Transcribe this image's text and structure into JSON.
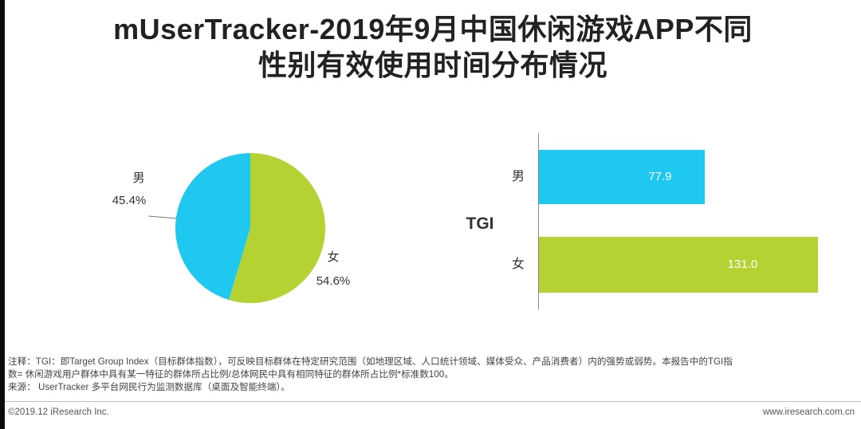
{
  "title": {
    "line1": "mUserTracker-2019年9月中国休闲游戏APP不同",
    "line2": "性别有效使用时间分布情况"
  },
  "chart_data": [
    {
      "type": "pie",
      "slices": [
        {
          "label": "男",
          "value": 45.4,
          "value_label": "45.4%",
          "color": "#1fc8ef"
        },
        {
          "label": "女",
          "value": 54.6,
          "value_label": "54.6%",
          "color": "#b4d333"
        }
      ]
    },
    {
      "type": "bar",
      "orientation": "horizontal",
      "ylabel": "TGI",
      "categories": [
        "男",
        "女"
      ],
      "values": [
        77.9,
        131.0
      ],
      "value_labels": [
        "77.9",
        "131.0"
      ],
      "colors": [
        "#1fc8ef",
        "#b4d333"
      ],
      "xlim": [
        0,
        131.0
      ]
    }
  ],
  "notes": {
    "line1": "注释：TGI：即Target Group Index（目标群体指数），可反映目标群体在特定研究范围（如地理区域、人口统计领域、媒体受众、产品消费者）内的强势或弱势。本报告中的TGI指",
    "line2": "数= 休闲游戏用户群体中具有某一特征的群体所占比例/总体网民中具有相同特征的群体所占比例*标准数100。",
    "line3": "来源： UserTracker 多平台网民行为监测数据库（桌面及智能终端）。"
  },
  "footer": {
    "copyright": "©2019.12 iResearch Inc.",
    "website": "www.iresearch.com.cn"
  }
}
